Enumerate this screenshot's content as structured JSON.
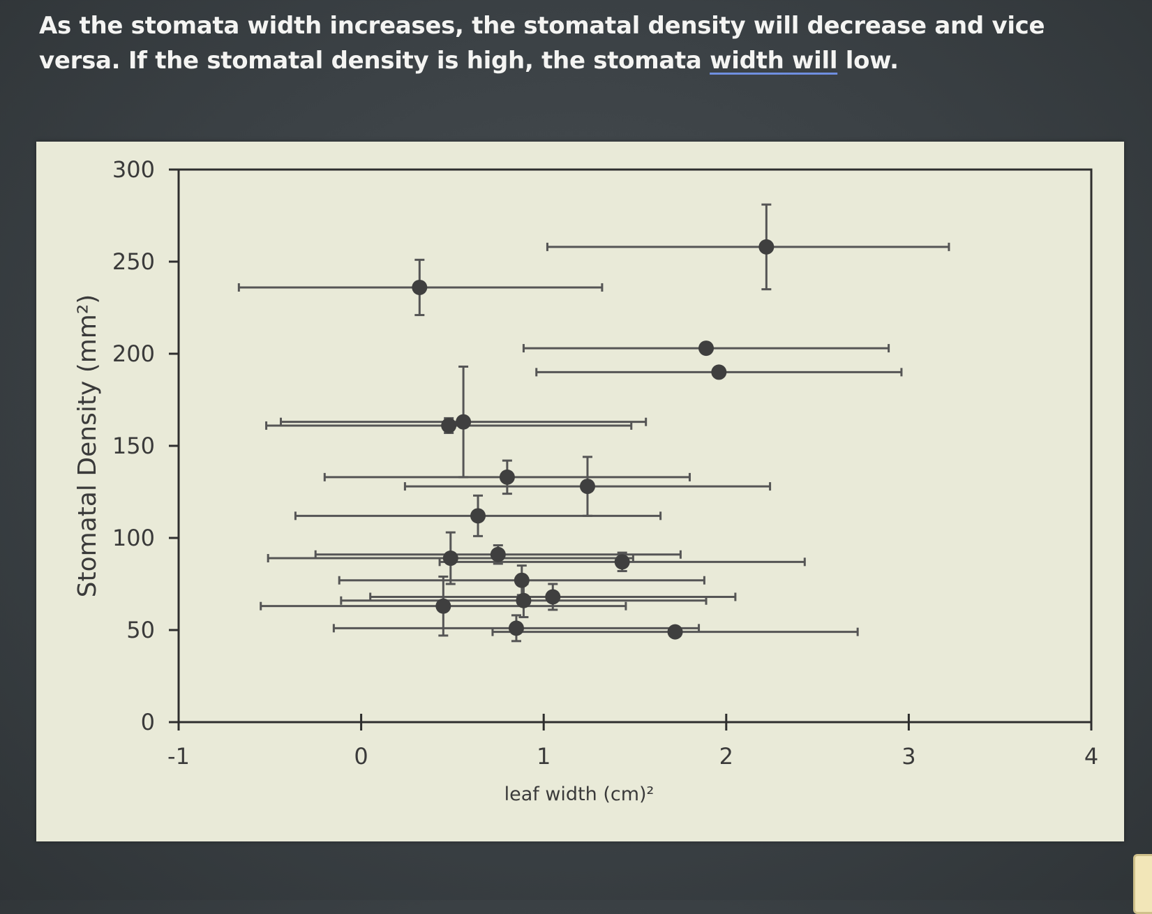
{
  "caption": {
    "part1": "As the stomata width increases, the stomatal density will decrease and vice versa. If the stomatal density is high, the stomata ",
    "link": "width  will",
    "part2": " low."
  },
  "chart_data": {
    "type": "scatter",
    "title": "",
    "xlabel": "leaf width (cm)²",
    "ylabel": "Stomatal Density (mm²)",
    "xlim": [
      -1,
      4
    ],
    "ylim": [
      0,
      300
    ],
    "xticks": [
      -1,
      0,
      1,
      2,
      3,
      4
    ],
    "yticks": [
      0,
      50,
      100,
      150,
      200,
      250,
      300
    ],
    "grid": false,
    "legend": "none",
    "colors": {
      "marker": "#3f3f3f",
      "errorbar": "#555555",
      "axis": "#2e2e2e",
      "panel": "#e9ead8"
    },
    "points": [
      {
        "x": 2.22,
        "y": 258,
        "xerr": [
          1.2,
          1.0
        ],
        "yerr": [
          23,
          23
        ]
      },
      {
        "x": 0.32,
        "y": 236,
        "xerr": [
          0.99,
          1.0
        ],
        "yerr": [
          15,
          15
        ]
      },
      {
        "x": 1.89,
        "y": 203,
        "xerr": [
          1.0,
          1.0
        ],
        "yerr": [
          0,
          0
        ]
      },
      {
        "x": 1.96,
        "y": 190,
        "xerr": [
          1.0,
          1.0
        ],
        "yerr": [
          0,
          0
        ]
      },
      {
        "x": 0.48,
        "y": 161,
        "xerr": [
          1.0,
          1.0
        ],
        "yerr": [
          4,
          4
        ]
      },
      {
        "x": 0.56,
        "y": 163,
        "xerr": [
          1.0,
          1.0
        ],
        "yerr": [
          30,
          30
        ]
      },
      {
        "x": 0.8,
        "y": 133,
        "xerr": [
          1.0,
          1.0
        ],
        "yerr": [
          9,
          9
        ]
      },
      {
        "x": 1.24,
        "y": 128,
        "xerr": [
          1.0,
          1.0
        ],
        "yerr": [
          16,
          16
        ]
      },
      {
        "x": 0.64,
        "y": 112,
        "xerr": [
          1.0,
          1.0
        ],
        "yerr": [
          11,
          11
        ]
      },
      {
        "x": 0.49,
        "y": 89,
        "xerr": [
          1.0,
          1.0
        ],
        "yerr": [
          14,
          14
        ]
      },
      {
        "x": 0.75,
        "y": 91,
        "xerr": [
          1.0,
          1.0
        ],
        "yerr": [
          5,
          5
        ]
      },
      {
        "x": 1.43,
        "y": 87,
        "xerr": [
          1.0,
          1.0
        ],
        "yerr": [
          5,
          5
        ]
      },
      {
        "x": 0.88,
        "y": 77,
        "xerr": [
          1.0,
          1.0
        ],
        "yerr": [
          8,
          8
        ]
      },
      {
        "x": 1.05,
        "y": 68,
        "xerr": [
          1.0,
          1.0
        ],
        "yerr": [
          7,
          7
        ]
      },
      {
        "x": 0.89,
        "y": 66,
        "xerr": [
          1.0,
          1.0
        ],
        "yerr": [
          9,
          9
        ]
      },
      {
        "x": 0.45,
        "y": 63,
        "xerr": [
          1.0,
          1.0
        ],
        "yerr": [
          16,
          16
        ]
      },
      {
        "x": 0.85,
        "y": 51,
        "xerr": [
          1.0,
          1.0
        ],
        "yerr": [
          7,
          7
        ]
      },
      {
        "x": 1.72,
        "y": 49,
        "xerr": [
          1.0,
          1.0
        ],
        "yerr": [
          2,
          2
        ]
      }
    ]
  }
}
